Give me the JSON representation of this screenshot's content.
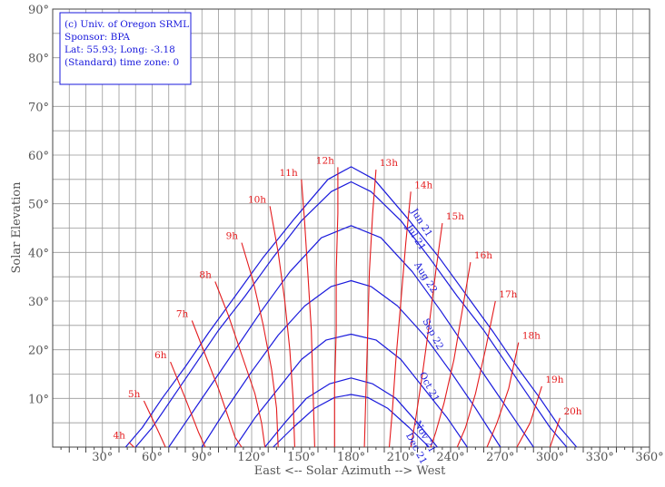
{
  "chart_data": {
    "type": "line",
    "xlabel": "East <-- Solar Azimuth --> West",
    "ylabel": "Solar Elevation",
    "xlim": [
      0,
      360
    ],
    "ylim": [
      0,
      90
    ],
    "grid": true,
    "x_tick_labels": [
      "30°",
      "60°",
      "90°",
      "120°",
      "150°",
      "180°",
      "210°",
      "240°",
      "270°",
      "300°",
      "330°",
      "360°"
    ],
    "y_tick_labels": [
      "10°",
      "20°",
      "30°",
      "40°",
      "50°",
      "60°",
      "70°",
      "80°",
      "90°"
    ],
    "info_box": [
      "(c) Univ. of Oregon SRML",
      "Sponsor: BPA",
      "Lat: 55.93; Long: -3.18",
      "(Standard) time zone: 0"
    ],
    "sun_path_labels": [
      "Jun 21",
      "Jul 21",
      "Aug 22",
      "Sep 22",
      "Oct 21",
      "Nov 21",
      "Dec 21"
    ],
    "date_series": [
      {
        "azimuth": [
          44,
          54,
          66,
          80,
          94,
          110,
          127,
          146,
          166,
          180,
          194,
          214,
          233,
          250,
          266,
          280,
          294,
          306,
          316
        ],
        "elevation": [
          0,
          4,
          10,
          16.5,
          23.5,
          31,
          39,
          47,
          55,
          57.6,
          55,
          47,
          39,
          31,
          23.5,
          16.5,
          10,
          4,
          0
        ]
      },
      {
        "azimuth": [
          50,
          60,
          72,
          86,
          100,
          116,
          133,
          150,
          168,
          180,
          192,
          210,
          227,
          244,
          260,
          274,
          288,
          300,
          310
        ],
        "elevation": [
          0,
          4,
          10,
          17,
          24,
          31,
          39,
          46.5,
          52.5,
          54.5,
          52.5,
          46.5,
          39,
          31,
          24,
          17,
          10,
          4,
          0
        ]
      },
      {
        "azimuth": [
          70,
          80,
          94,
          110,
          126,
          143,
          162,
          180,
          198,
          217,
          234,
          250,
          266,
          280,
          290
        ],
        "elevation": [
          0,
          5,
          12,
          20,
          28,
          36,
          43,
          45.5,
          43,
          36,
          28,
          20,
          12,
          5,
          0
        ]
      },
      {
        "azimuth": [
          90,
          105,
          120,
          136,
          152,
          168,
          180,
          192,
          208,
          224,
          240,
          255,
          270
        ],
        "elevation": [
          0,
          8,
          15.5,
          23,
          29,
          33,
          34.2,
          33,
          29,
          23,
          15.5,
          8,
          0
        ]
      },
      {
        "azimuth": [
          110,
          122,
          136,
          150,
          165,
          180,
          195,
          210,
          224,
          238,
          250
        ],
        "elevation": [
          0,
          6,
          12,
          18,
          22,
          23.2,
          22,
          18,
          12,
          6,
          0
        ]
      },
      {
        "azimuth": [
          128,
          140,
          153,
          167,
          180,
          193,
          207,
          220,
          232
        ],
        "elevation": [
          0,
          5,
          10,
          13,
          14.2,
          13,
          10,
          5,
          0
        ]
      },
      {
        "azimuth": [
          133,
          145,
          158,
          170,
          180,
          190,
          202,
          215,
          227
        ],
        "elevation": [
          0,
          4,
          8,
          10.2,
          10.8,
          10.2,
          8,
          4,
          0
        ]
      }
    ],
    "hour_series": [
      {
        "label": "4h",
        "azimuth": [
          46,
          49
        ],
        "elevation": [
          1,
          0
        ]
      },
      {
        "label": "5h",
        "azimuth": [
          55,
          64,
          68
        ],
        "elevation": [
          9.5,
          3,
          0
        ]
      },
      {
        "label": "6h",
        "azimuth": [
          71,
          80,
          88,
          92
        ],
        "elevation": [
          17.5,
          10,
          3,
          0
        ]
      },
      {
        "label": "7h",
        "azimuth": [
          84,
          92,
          100,
          106,
          110,
          114
        ],
        "elevation": [
          26,
          19,
          12,
          6,
          2,
          0
        ]
      },
      {
        "label": "8h",
        "azimuth": [
          98,
          106,
          114,
          122,
          126,
          128
        ],
        "elevation": [
          34,
          27,
          19,
          11,
          5,
          0
        ]
      },
      {
        "label": "9h",
        "azimuth": [
          114,
          121,
          127,
          132,
          135,
          136
        ],
        "elevation": [
          42,
          34,
          25,
          16,
          8,
          0
        ]
      },
      {
        "label": "10h",
        "azimuth": [
          131,
          136,
          140,
          143,
          145,
          146
        ],
        "elevation": [
          49.5,
          40,
          30,
          20,
          10,
          0
        ]
      },
      {
        "label": "11h",
        "azimuth": [
          150,
          152,
          154,
          156,
          157,
          158
        ],
        "elevation": [
          55,
          46,
          35,
          24,
          12,
          0
        ]
      },
      {
        "label": "12h",
        "azimuth": [
          172,
          172,
          171,
          171,
          170,
          170
        ],
        "elevation": [
          57.5,
          48,
          36,
          24,
          12,
          0
        ]
      },
      {
        "label": "13h",
        "azimuth": [
          195,
          193,
          191,
          190,
          189,
          188
        ],
        "elevation": [
          57,
          48,
          36,
          24,
          12,
          0
        ]
      },
      {
        "label": "14h",
        "azimuth": [
          216,
          213,
          210,
          207,
          205,
          203
        ],
        "elevation": [
          52.5,
          42,
          30,
          18,
          8,
          0
        ]
      },
      {
        "label": "15h",
        "azimuth": [
          235,
          231,
          227,
          223,
          219,
          216
        ],
        "elevation": [
          46,
          36,
          25,
          15,
          6,
          0
        ]
      },
      {
        "label": "16h",
        "azimuth": [
          252,
          247,
          242,
          236,
          231,
          228
        ],
        "elevation": [
          38,
          28,
          18,
          9,
          3,
          0
        ]
      },
      {
        "label": "17h",
        "azimuth": [
          267,
          261,
          255,
          249,
          244
        ],
        "elevation": [
          30,
          20,
          11,
          4,
          0
        ]
      },
      {
        "label": "18h",
        "azimuth": [
          281,
          275,
          268,
          262
        ],
        "elevation": [
          21.5,
          12,
          5,
          0
        ]
      },
      {
        "label": "19h",
        "azimuth": [
          295,
          288,
          280
        ],
        "elevation": [
          12.5,
          5,
          0
        ]
      },
      {
        "label": "20h",
        "azimuth": [
          306,
          300
        ],
        "elevation": [
          6,
          0
        ]
      }
    ]
  }
}
